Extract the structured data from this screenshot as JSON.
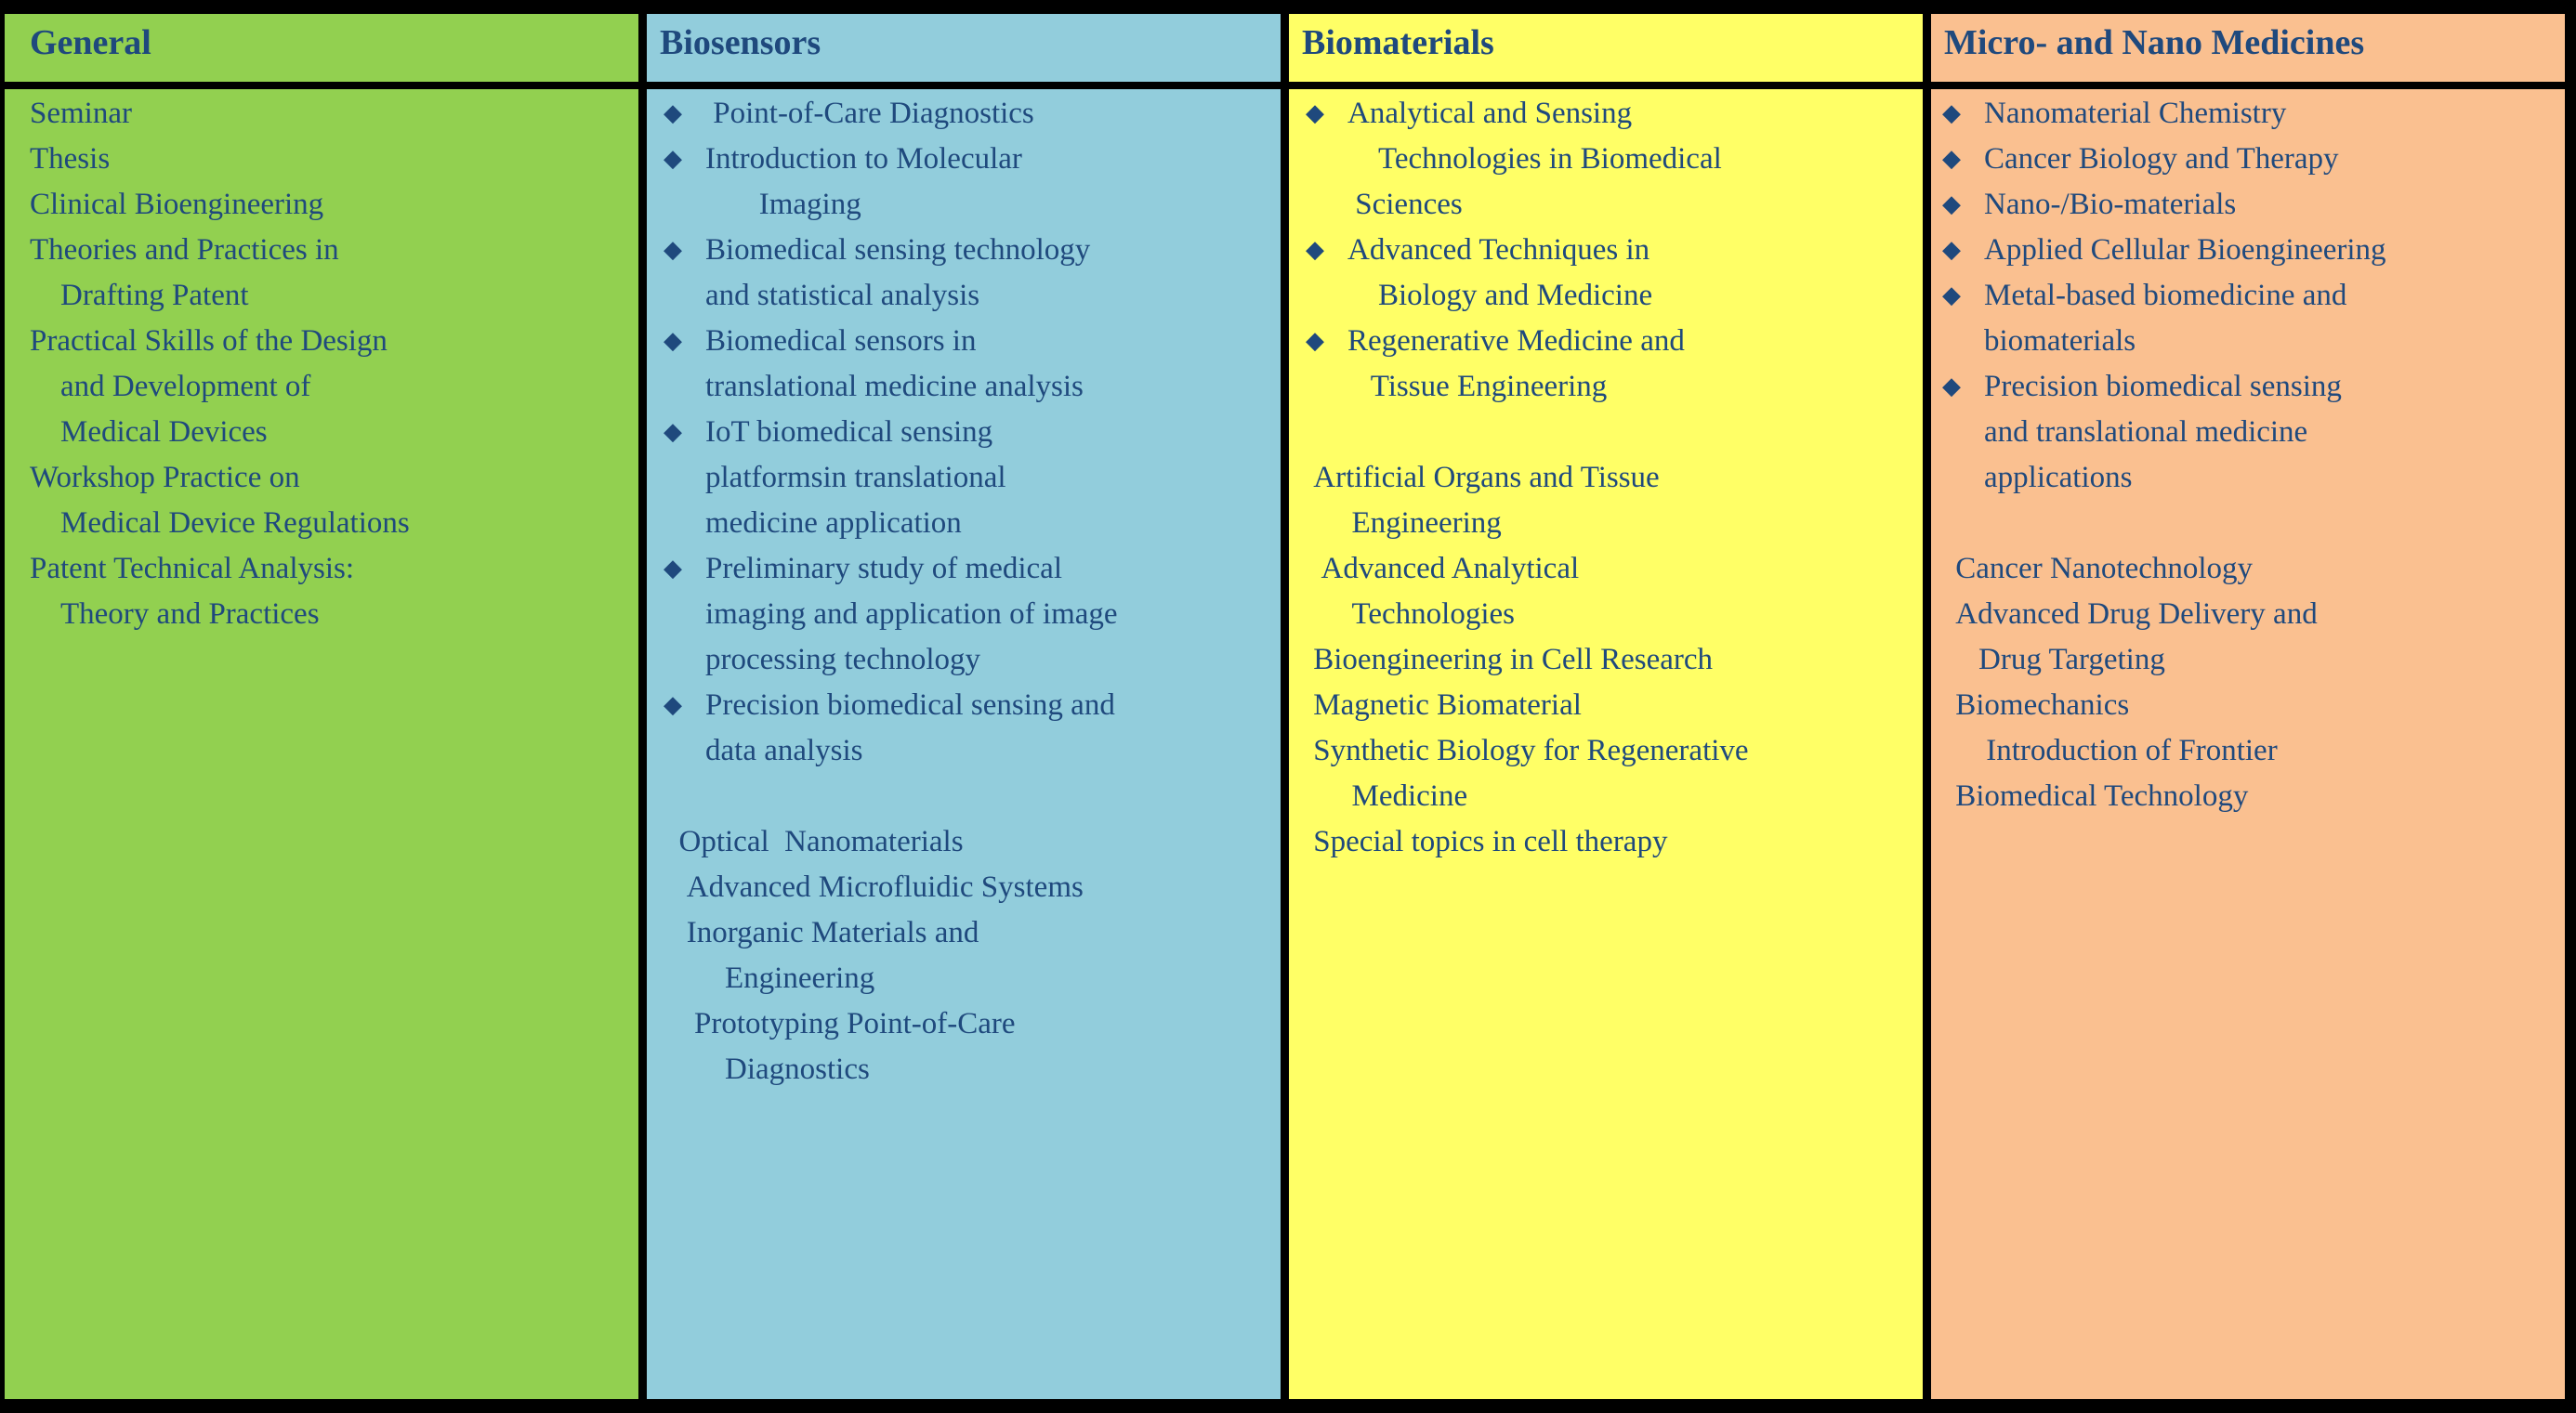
{
  "bullet_glyph": "◆",
  "colors": {
    "text": "#1F497D",
    "border": "#000000",
    "general_bg": "#92D050",
    "biosensors_bg": "#92CDDC",
    "biomaterials_bg": "#FFFF66",
    "micro_nano_bg": "#FAC090"
  },
  "columns": [
    {
      "id": "general",
      "header": "General",
      "bg": "#92D050",
      "items": [
        {
          "bullet": false,
          "lines": [
            "Seminar"
          ]
        },
        {
          "bullet": false,
          "lines": [
            "Thesis"
          ]
        },
        {
          "bullet": false,
          "lines": [
            "Clinical Bioengineering"
          ]
        },
        {
          "bullet": false,
          "lines": [
            "Theories and Practices in",
            "    Drafting Patent"
          ]
        },
        {
          "bullet": false,
          "lines": [
            "Practical Skills of the Design",
            "    and Development of",
            "    Medical Devices"
          ]
        },
        {
          "bullet": false,
          "lines": [
            "Workshop Practice on",
            "    Medical Device Regulations"
          ]
        },
        {
          "bullet": false,
          "lines": [
            "Patent Technical Analysis:",
            "    Theory and Practices"
          ]
        }
      ]
    },
    {
      "id": "biosensors",
      "header": "Biosensors",
      "bg": "#92CDDC",
      "items": [
        {
          "bullet": true,
          "lines": [
            " Point-of-Care Diagnostics"
          ]
        },
        {
          "bullet": true,
          "lines": [
            "Introduction to Molecular",
            "       Imaging"
          ]
        },
        {
          "bullet": true,
          "lines": [
            "Biomedical sensing technology",
            "and statistical analysis"
          ]
        },
        {
          "bullet": true,
          "lines": [
            "Biomedical sensors in",
            "translational medicine analysis"
          ]
        },
        {
          "bullet": true,
          "lines": [
            "IoT biomedical sensing",
            "platformsin translational",
            "medicine application"
          ]
        },
        {
          "bullet": true,
          "lines": [
            "Preliminary study of medical",
            "imaging and application of image",
            "processing technology"
          ]
        },
        {
          "bullet": true,
          "lines": [
            "Precision biomedical sensing and",
            "data analysis"
          ]
        },
        {
          "spacer": true
        },
        {
          "bullet": false,
          "lines": [
            "  Optical  Nanomaterials"
          ]
        },
        {
          "bullet": false,
          "lines": [
            "   Advanced Microfluidic Systems"
          ]
        },
        {
          "bullet": false,
          "lines": [
            "   Inorganic Materials and",
            "        Engineering"
          ]
        },
        {
          "bullet": false,
          "lines": [
            "    Prototyping Point-of-Care",
            "        Diagnostics"
          ]
        }
      ]
    },
    {
      "id": "biomaterials",
      "header": "Biomaterials",
      "bg": "#FFFF66",
      "items": [
        {
          "bullet": true,
          "lines": [
            "Analytical and Sensing",
            "    Technologies in Biomedical",
            " Sciences"
          ]
        },
        {
          "bullet": true,
          "lines": [
            "Advanced Techniques in",
            "    Biology and Medicine"
          ]
        },
        {
          "bullet": true,
          "lines": [
            "Regenerative Medicine and",
            "   Tissue Engineering"
          ]
        },
        {
          "spacer": true
        },
        {
          "bullet": false,
          "lines": [
            " Artificial Organs and Tissue",
            "      Engineering"
          ]
        },
        {
          "bullet": false,
          "lines": [
            "  Advanced Analytical",
            "      Technologies"
          ]
        },
        {
          "bullet": false,
          "lines": [
            " Bioengineering in Cell Research"
          ]
        },
        {
          "bullet": false,
          "lines": [
            " Magnetic Biomaterial"
          ]
        },
        {
          "bullet": false,
          "lines": [
            " Synthetic Biology for Regenerative",
            "      Medicine"
          ]
        },
        {
          "bullet": false,
          "lines": [
            " Special topics in cell therapy"
          ]
        }
      ]
    },
    {
      "id": "micro-and-nano-medicines",
      "header": "Micro- and Nano Medicines",
      "bg": "#FAC090",
      "items": [
        {
          "bullet": true,
          "lines": [
            "Nanomaterial Chemistry"
          ]
        },
        {
          "bullet": true,
          "lines": [
            "Cancer Biology and Therapy"
          ]
        },
        {
          "bullet": true,
          "lines": [
            "Nano-/Bio-materials"
          ]
        },
        {
          "bullet": true,
          "lines": [
            "Applied Cellular Bioengineering"
          ]
        },
        {
          "bullet": true,
          "lines": [
            "Metal-based biomedicine and",
            "biomaterials"
          ]
        },
        {
          "bullet": true,
          "lines": [
            "Precision biomedical sensing",
            "and translational medicine",
            "applications"
          ]
        },
        {
          "spacer": true
        },
        {
          "bullet": false,
          "lines": [
            " Cancer Nanotechnology"
          ]
        },
        {
          "bullet": false,
          "lines": [
            " Advanced Drug Delivery and",
            "    Drug Targeting"
          ]
        },
        {
          "bullet": false,
          "lines": [
            " Biomechanics"
          ]
        },
        {
          "bullet": false,
          "lines": [
            "     Introduction of Frontier",
            " Biomedical Technology"
          ]
        }
      ]
    }
  ]
}
